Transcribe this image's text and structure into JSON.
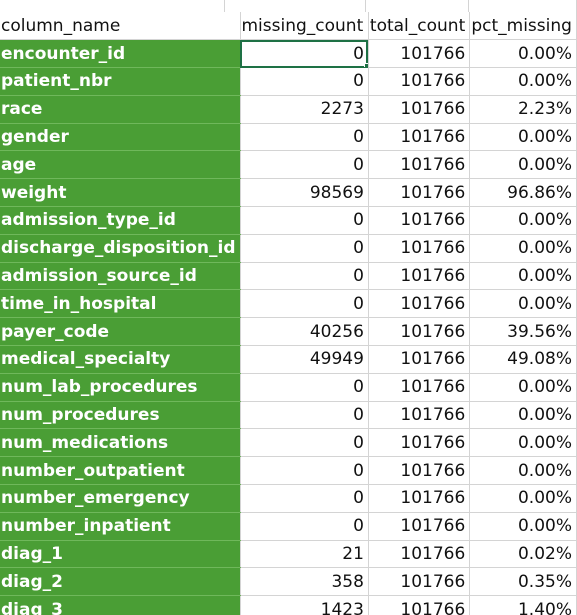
{
  "headers": [
    "column_name",
    "missing_count",
    "total_count",
    "pct_missing"
  ],
  "rows": [
    {
      "name": "encounter_id",
      "missing": "0",
      "total": "101766",
      "pct": "0.00%"
    },
    {
      "name": "patient_nbr",
      "missing": "0",
      "total": "101766",
      "pct": "0.00%"
    },
    {
      "name": "race",
      "missing": "2273",
      "total": "101766",
      "pct": "2.23%"
    },
    {
      "name": "gender",
      "missing": "0",
      "total": "101766",
      "pct": "0.00%"
    },
    {
      "name": "age",
      "missing": "0",
      "total": "101766",
      "pct": "0.00%"
    },
    {
      "name": "weight",
      "missing": "98569",
      "total": "101766",
      "pct": "96.86%"
    },
    {
      "name": "admission_type_id",
      "missing": "0",
      "total": "101766",
      "pct": "0.00%"
    },
    {
      "name": "discharge_disposition_id",
      "missing": "0",
      "total": "101766",
      "pct": "0.00%"
    },
    {
      "name": "admission_source_id",
      "missing": "0",
      "total": "101766",
      "pct": "0.00%"
    },
    {
      "name": "time_in_hospital",
      "missing": "0",
      "total": "101766",
      "pct": "0.00%"
    },
    {
      "name": "payer_code",
      "missing": "40256",
      "total": "101766",
      "pct": "39.56%"
    },
    {
      "name": "medical_specialty",
      "missing": "49949",
      "total": "101766",
      "pct": "49.08%"
    },
    {
      "name": "num_lab_procedures",
      "missing": "0",
      "total": "101766",
      "pct": "0.00%"
    },
    {
      "name": "num_procedures",
      "missing": "0",
      "total": "101766",
      "pct": "0.00%"
    },
    {
      "name": "num_medications",
      "missing": "0",
      "total": "101766",
      "pct": "0.00%"
    },
    {
      "name": "number_outpatient",
      "missing": "0",
      "total": "101766",
      "pct": "0.00%"
    },
    {
      "name": "number_emergency",
      "missing": "0",
      "total": "101766",
      "pct": "0.00%"
    },
    {
      "name": "number_inpatient",
      "missing": "0",
      "total": "101766",
      "pct": "0.00%"
    },
    {
      "name": "diag_1",
      "missing": "21",
      "total": "101766",
      "pct": "0.02%"
    },
    {
      "name": "diag_2",
      "missing": "358",
      "total": "101766",
      "pct": "0.35%"
    },
    {
      "name": "diag_3",
      "missing": "1423",
      "total": "101766",
      "pct": "1.40%"
    }
  ],
  "colors": {
    "name_fill": "#4a9e35",
    "grid": "#d4d4d4",
    "selection": "#1e7145"
  }
}
